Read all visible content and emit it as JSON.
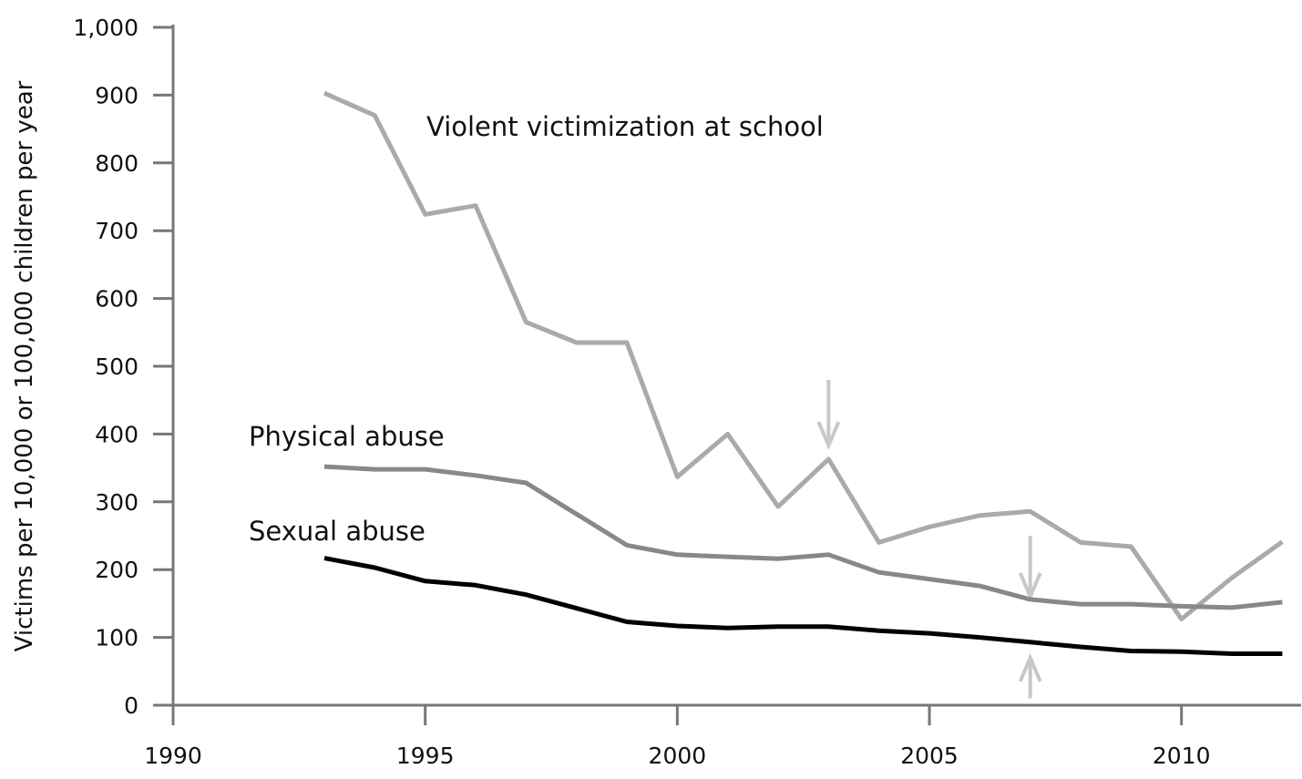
{
  "chart_data": {
    "type": "line",
    "title": "",
    "xlabel": "",
    "ylabel": "Victims per 10,000 or 100,000 children per year",
    "xlim": [
      1990,
      2012.3
    ],
    "ylim": [
      0,
      1000
    ],
    "grid": false,
    "x_ticks": [
      1990,
      1995,
      2000,
      2005,
      2010
    ],
    "x_tick_labels": [
      "1990",
      "1995",
      "2000",
      "2005",
      "2010"
    ],
    "y_ticks": [
      0,
      100,
      200,
      300,
      400,
      500,
      600,
      700,
      800,
      900,
      1000
    ],
    "y_tick_labels": [
      "0",
      "100",
      "200",
      "300",
      "400",
      "500",
      "600",
      "700",
      "800",
      "900",
      "1,000"
    ],
    "x": [
      1993,
      1994,
      1995,
      1996,
      1997,
      1998,
      1999,
      2000,
      2001,
      2002,
      2003,
      2004,
      2005,
      2006,
      2007,
      2008,
      2009,
      2010,
      2011,
      2012
    ],
    "series": [
      {
        "name": "Violent victimization at school",
        "color": "#aaaaaa",
        "values": [
          903,
          870,
          724,
          737,
          565,
          535,
          535,
          337,
          400,
          293,
          363,
          240,
          263,
          280,
          286,
          240,
          234,
          127,
          188,
          241
        ]
      },
      {
        "name": "Physical abuse",
        "color": "#888888",
        "values": [
          352,
          348,
          348,
          339,
          328,
          282,
          236,
          222,
          219,
          216,
          222,
          196,
          186,
          176,
          156,
          149,
          149,
          146,
          144,
          152
        ]
      },
      {
        "name": "Sexual abuse",
        "color": "#000000",
        "values": [
          217,
          203,
          183,
          177,
          163,
          143,
          123,
          117,
          114,
          116,
          116,
          110,
          106,
          100,
          93,
          86,
          80,
          79,
          76,
          76
        ]
      }
    ],
    "annotations": [
      {
        "type": "arrow-down",
        "x": 2003,
        "y_from": 480,
        "y_to": 383,
        "color": "#c8c8c8"
      },
      {
        "type": "arrow-down",
        "x": 2007,
        "y_from": 250,
        "y_to": 160,
        "color": "#c8c8c8"
      },
      {
        "type": "arrow-up",
        "x": 2007,
        "y_from": 10,
        "y_to": 70,
        "color": "#c8c8c8"
      }
    ]
  }
}
